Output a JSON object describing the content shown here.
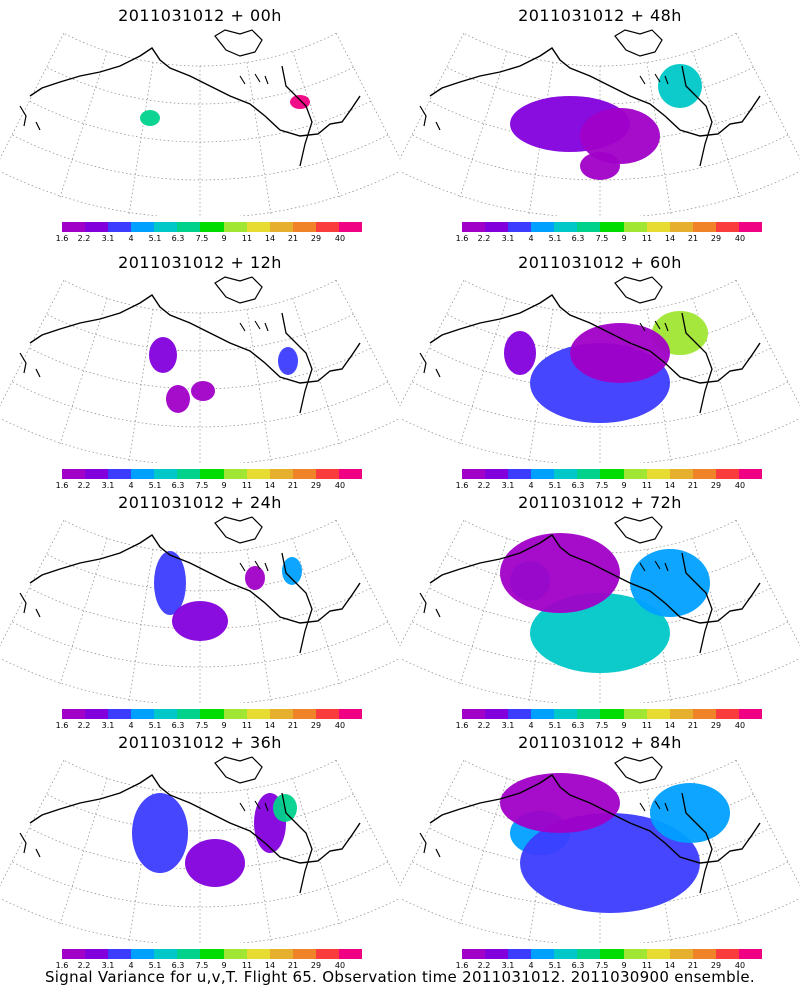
{
  "panels": [
    {
      "title": "2011031012 + 00h",
      "forecast_hour": 0
    },
    {
      "title": "2011031012 + 48h",
      "forecast_hour": 48
    },
    {
      "title": "2011031012 + 12h",
      "forecast_hour": 12
    },
    {
      "title": "2011031012 + 60h",
      "forecast_hour": 60
    },
    {
      "title": "2011031012 + 24h",
      "forecast_hour": 24
    },
    {
      "title": "2011031012 + 72h",
      "forecast_hour": 72
    },
    {
      "title": "2011031012 + 36h",
      "forecast_hour": 36
    },
    {
      "title": "2011031012 + 84h",
      "forecast_hour": 84
    }
  ],
  "legend": {
    "labels": [
      "1.6",
      "2.2",
      "3.1",
      "4",
      "5.1",
      "6.3",
      "7.5",
      "9",
      "11",
      "14",
      "21",
      "29",
      "40"
    ],
    "colors": [
      "#a000c8",
      "#8200dc",
      "#3c3cff",
      "#00a0ff",
      "#00c8c8",
      "#00d28c",
      "#00dc00",
      "#a0e632",
      "#e6dc32",
      "#e6af2d",
      "#f08228",
      "#fa3c3c",
      "#f00082"
    ]
  },
  "colors": {
    "coastline": "#000000",
    "grid": "#888888"
  },
  "caption": "Signal Variance for u,v,T. Flight 65. Observation time 2011031012. 2011030900 ensemble."
}
